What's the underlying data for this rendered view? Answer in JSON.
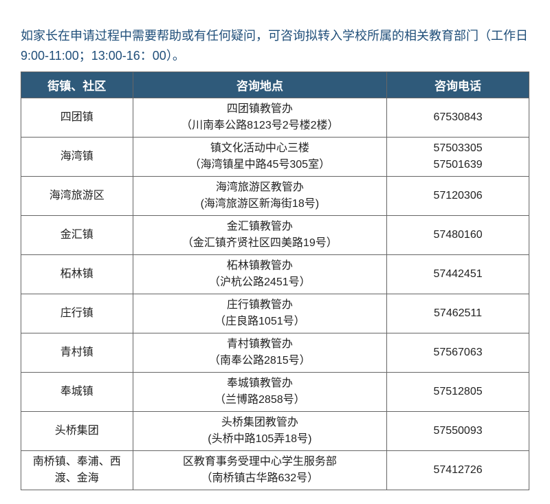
{
  "intro_text": "如家长在申请过程中需要帮助或有任何疑问，可咨询拟转入学校所属的相关教育部门（工作日9:00-11:00；13:00-16：00）。",
  "table": {
    "columns": [
      "街镇、社区",
      "咨询地点",
      "咨询电话"
    ],
    "rows": [
      {
        "town": "四团镇",
        "addr_l1": "四团镇教管办",
        "addr_l2": "（川南奉公路8123号2号楼2楼）",
        "phone_l1": "67530843",
        "phone_l2": ""
      },
      {
        "town": "海湾镇",
        "addr_l1": "镇文化活动中心三楼",
        "addr_l2": "（海湾镇星中路45号305室）",
        "phone_l1": "57503305",
        "phone_l2": "57501639"
      },
      {
        "town": "海湾旅游区",
        "addr_l1": "海湾旅游区教管办",
        "addr_l2": "(海湾旅游区新海街18号)",
        "phone_l1": "57120306",
        "phone_l2": ""
      },
      {
        "town": "金汇镇",
        "addr_l1": "金汇镇教管办",
        "addr_l2": "（金汇镇齐贤社区四美路19号）",
        "phone_l1": "57480160",
        "phone_l2": ""
      },
      {
        "town": "柘林镇",
        "addr_l1": "柘林镇教管办",
        "addr_l2": "（沪杭公路2451号）",
        "phone_l1": "57442451",
        "phone_l2": ""
      },
      {
        "town": "庄行镇",
        "addr_l1": "庄行镇教管办",
        "addr_l2": "（庄良路1051号）",
        "phone_l1": "57462511",
        "phone_l2": ""
      },
      {
        "town": "青村镇",
        "addr_l1": "青村镇教管办",
        "addr_l2": "（南奉公路2815号）",
        "phone_l1": "57567063",
        "phone_l2": ""
      },
      {
        "town": "奉城镇",
        "addr_l1": "奉城镇教管办",
        "addr_l2": "（兰博路2858号）",
        "phone_l1": "57512805",
        "phone_l2": ""
      },
      {
        "town": "头桥集团",
        "addr_l1": "头桥集团教管办",
        "addr_l2": "(头桥中路105弄18号)",
        "phone_l1": "57550093",
        "phone_l2": ""
      },
      {
        "town": "南桥镇、奉浦、西渡、金海",
        "addr_l1": "区教育事务受理中心学生服务部",
        "addr_l2": "（南桥镇古华路632号）",
        "phone_l1": "57412726",
        "phone_l2": ""
      }
    ],
    "header_bg": "#2f5a7a",
    "header_fg": "#ffffff",
    "border_color": "#666666",
    "intro_color": "#1f4e79"
  }
}
